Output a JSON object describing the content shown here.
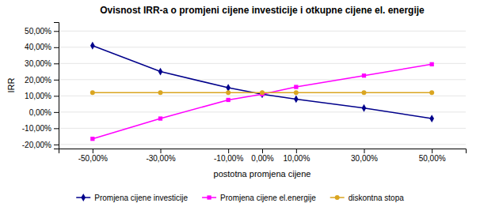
{
  "chart_data": {
    "type": "line",
    "title": "Ovisnost IRR-a o promjeni cijene investicije i otkupne cijene el. energije",
    "x_label": "postotna promjena  cijene",
    "y_label": "IRR",
    "x": [
      -0.5,
      -0.3,
      -0.1,
      0.0,
      0.1,
      0.3,
      0.5
    ],
    "series": [
      {
        "name": "Promjena cijene investicije",
        "color": "#00008B",
        "marker": "diamond",
        "values": [
          0.41,
          0.25,
          0.15,
          0.11,
          0.08,
          0.025,
          -0.04
        ]
      },
      {
        "name": "Promjena cijene el.energije",
        "color": "#FF00FF",
        "marker": "square",
        "values": [
          -0.165,
          -0.04,
          0.075,
          0.11,
          0.155,
          0.225,
          0.295
        ]
      },
      {
        "name": "diskontna stopa",
        "color": "#DAA520",
        "marker": "circle",
        "values": [
          0.12,
          0.12,
          0.12,
          0.12,
          0.12,
          0.12,
          0.12
        ]
      }
    ],
    "xlim": [
      -0.6,
      0.6
    ],
    "xticks": [
      {
        "value": -0.5,
        "label": "-50,00%"
      },
      {
        "value": -0.3,
        "label": "-30,00%"
      },
      {
        "value": -0.1,
        "label": "-10,00%"
      },
      {
        "value": 0.0,
        "label": "0,00%"
      },
      {
        "value": 0.1,
        "label": "10,00%"
      },
      {
        "value": 0.3,
        "label": "30,00%"
      },
      {
        "value": 0.5,
        "label": "50,00%"
      }
    ],
    "ylim": [
      -0.225,
      0.555
    ],
    "yticks": [
      {
        "value": -0.2,
        "label": "-20,00%"
      },
      {
        "value": -0.1,
        "label": "-10,00%"
      },
      {
        "value": 0.0,
        "label": "0,00%"
      },
      {
        "value": 0.1,
        "label": "10,00%"
      },
      {
        "value": 0.2,
        "label": "20,00%"
      },
      {
        "value": 0.3,
        "label": "30,00%"
      },
      {
        "value": 0.4,
        "label": "40,00%"
      },
      {
        "value": 0.5,
        "label": "50,00%"
      }
    ],
    "grid": true,
    "legend": "bottom"
  }
}
